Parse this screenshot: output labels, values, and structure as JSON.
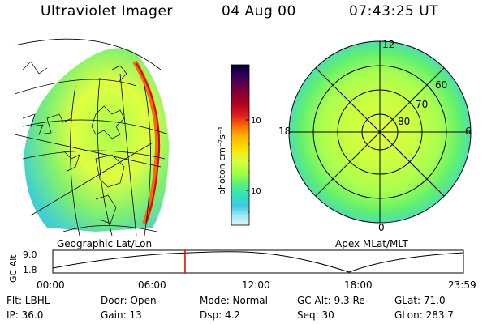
{
  "header": {
    "title": "Ultraviolet Imager",
    "date": "04 Aug 00",
    "time": "07:43:25 UT"
  },
  "left_map": {
    "caption": "Geographic Lat/Lon"
  },
  "right_map": {
    "caption": "Apex MLat/MLT",
    "mlt_labels": [
      "12",
      "18",
      "6",
      "0"
    ],
    "lat_labels": [
      "60",
      "70",
      "80"
    ]
  },
  "colorbar": {
    "unit_label": "photon cm⁻²s⁻¹",
    "ticks": [
      "100",
      "10"
    ],
    "colors": [
      "#000033",
      "#3a005a",
      "#7a003a",
      "#b00020",
      "#e02020",
      "#ff6a00",
      "#ffb000",
      "#ffe000",
      "#d8ff40",
      "#a0ff40",
      "#50f080",
      "#30e0c0",
      "#40c8e0",
      "#a0e8f0",
      "#e0f4f8"
    ]
  },
  "timeline": {
    "axis_label": "GC Alt",
    "y_ticks": [
      "9.0",
      "1.8"
    ],
    "x_ticks": [
      "00:00",
      "06:00",
      "12:00",
      "18:00",
      "23:59"
    ],
    "current_fraction": 0.322,
    "marker_color": "#e00000"
  },
  "footer": {
    "row1": [
      "Flt: LBHL",
      "Door: Open",
      "Mode: Normal",
      "GC Alt: 9.3 Re",
      "GLat:  71.0"
    ],
    "row2": [
      "IP: 36.0",
      "Gain: 13",
      "Dsp:     4.2",
      "Seq: 30",
      "GLon: 283.7"
    ]
  }
}
